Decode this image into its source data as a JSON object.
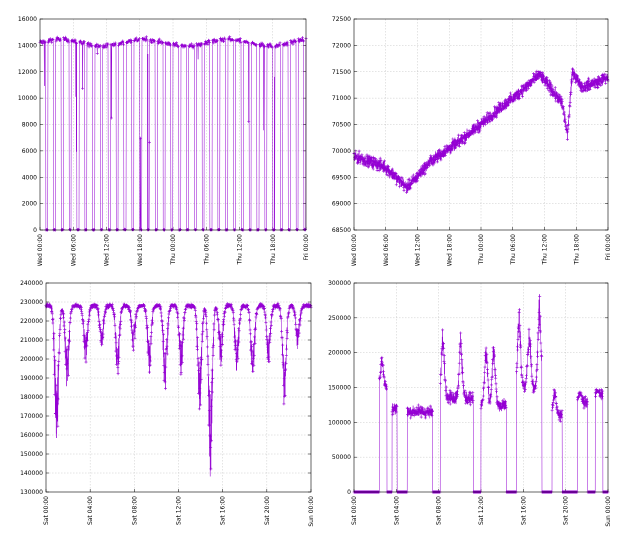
{
  "colors": {
    "series": "#9400d3",
    "grid": "#c8c8c8",
    "axis": "#000000"
  },
  "chart_data": [
    {
      "id": "chart-1",
      "type": "line",
      "panel": "top-left",
      "grid": true,
      "ylim": [
        0,
        16000
      ],
      "yticks": [
        "0",
        "2000",
        "4000",
        "6000",
        "8000",
        "10000",
        "12000",
        "14000",
        "16000"
      ],
      "xticks": [
        "Wed 00:00",
        "Wed 06:00",
        "Wed 12:00",
        "Wed 18:00",
        "Thu 00:00",
        "Thu 06:00",
        "Thu 12:00",
        "Thu 18:00",
        "Fri 00:00"
      ],
      "pattern": "on-off",
      "baseline": 0,
      "level": 14200,
      "level_range": [
        13500,
        14800
      ],
      "pulses": 34
    },
    {
      "id": "chart-2",
      "type": "line",
      "panel": "top-right",
      "grid": true,
      "ylim": [
        68500,
        72500
      ],
      "yticks": [
        "68500",
        "69000",
        "69500",
        "70000",
        "70500",
        "71000",
        "71500",
        "72000",
        "72500"
      ],
      "xticks": [
        "Wed 00:00",
        "Wed 06:00",
        "Wed 12:00",
        "Wed 18:00",
        "Thu 00:00",
        "Thu 06:00",
        "Thu 12:00",
        "Thu 18:00",
        "Fri 00:00"
      ],
      "pattern": "noisy-trend",
      "trend": [
        [
          0,
          69900
        ],
        [
          0.12,
          69700
        ],
        [
          0.21,
          69300
        ],
        [
          0.3,
          69800
        ],
        [
          0.42,
          70200
        ],
        [
          0.55,
          70700
        ],
        [
          0.65,
          71100
        ],
        [
          0.73,
          71450
        ],
        [
          0.82,
          70900
        ],
        [
          0.84,
          70300
        ],
        [
          0.86,
          71500
        ],
        [
          0.9,
          71200
        ],
        [
          1.0,
          71400
        ]
      ],
      "noise": 160
    },
    {
      "id": "chart-3",
      "type": "line",
      "panel": "bottom-left",
      "grid": true,
      "ylim": [
        130000,
        240000
      ],
      "yticks": [
        "130000",
        "140000",
        "150000",
        "160000",
        "170000",
        "180000",
        "190000",
        "200000",
        "210000",
        "220000",
        "230000",
        "240000"
      ],
      "xticks": [
        "Sat 00:00",
        "Sat 04:00",
        "Sat 08:00",
        "Sat 12:00",
        "Sat 16:00",
        "Sat 20:00",
        "Sun 00:00"
      ],
      "pattern": "periodic-dips",
      "level": 228000,
      "dips": [
        [
          0.04,
          150000
        ],
        [
          0.08,
          182000
        ],
        [
          0.15,
          195000
        ],
        [
          0.21,
          205000
        ],
        [
          0.27,
          190000
        ],
        [
          0.33,
          205000
        ],
        [
          0.39,
          192000
        ],
        [
          0.45,
          180000
        ],
        [
          0.51,
          190000
        ],
        [
          0.58,
          170000
        ],
        [
          0.62,
          135000
        ],
        [
          0.66,
          195000
        ],
        [
          0.72,
          190000
        ],
        [
          0.78,
          185000
        ],
        [
          0.84,
          195000
        ],
        [
          0.9,
          172000
        ],
        [
          0.95,
          205000
        ]
      ]
    },
    {
      "id": "chart-4",
      "type": "line",
      "panel": "bottom-right",
      "grid": true,
      "ylim": [
        0,
        300000
      ],
      "yticks": [
        "0",
        "50000",
        "100000",
        "150000",
        "200000",
        "250000",
        "300000"
      ],
      "xticks": [
        "Sat 00:00",
        "Sat 04:00",
        "Sat 08:00",
        "Sat 12:00",
        "Sat 16:00",
        "Sat 20:00",
        "Sun 00:00"
      ],
      "pattern": "segments",
      "segments": [
        [
          0.0,
          0.1,
          0
        ],
        [
          0.1,
          0.13,
          150000
        ],
        [
          0.13,
          0.15,
          0
        ],
        [
          0.15,
          0.17,
          120000
        ],
        [
          0.17,
          0.21,
          0
        ],
        [
          0.21,
          0.31,
          115000
        ],
        [
          0.31,
          0.34,
          0
        ],
        [
          0.34,
          0.47,
          135000
        ],
        [
          0.47,
          0.5,
          0
        ],
        [
          0.5,
          0.6,
          125000
        ],
        [
          0.6,
          0.64,
          0
        ],
        [
          0.64,
          0.74,
          150000
        ],
        [
          0.74,
          0.78,
          0
        ],
        [
          0.78,
          0.82,
          110000
        ],
        [
          0.82,
          0.88,
          0
        ],
        [
          0.88,
          0.92,
          130000
        ],
        [
          0.92,
          0.95,
          0
        ],
        [
          0.95,
          0.98,
          140000
        ],
        [
          0.98,
          1.0,
          0
        ]
      ],
      "spikes": [
        [
          0.11,
          195000
        ],
        [
          0.35,
          245000
        ],
        [
          0.42,
          230000
        ],
        [
          0.52,
          215000
        ],
        [
          0.55,
          220000
        ],
        [
          0.65,
          265000
        ],
        [
          0.69,
          245000
        ],
        [
          0.73,
          285000
        ],
        [
          0.79,
          150000
        ],
        [
          0.89,
          145000
        ],
        [
          0.96,
          145000
        ]
      ]
    }
  ]
}
